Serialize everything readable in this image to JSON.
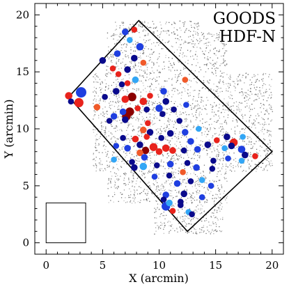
{
  "chart_data": {
    "type": "scatter",
    "labels": [
      "GOODS",
      "HDF-N"
    ],
    "xlabel": "X (arcmin)",
    "ylabel": "Y (arcmin)",
    "xlim": [
      -1,
      21
    ],
    "ylim": [
      -1,
      21
    ],
    "x_ticks": [
      "0",
      "5",
      "10",
      "15",
      "20"
    ],
    "y_ticks": [
      "0",
      "5",
      "10",
      "15",
      "20"
    ],
    "grid": false,
    "field_outline": [
      [
        2.0,
        12.8
      ],
      [
        8.2,
        19.5
      ],
      [
        20.0,
        8.0
      ],
      [
        12.5,
        1.0
      ]
    ],
    "reference_box": [
      [
        0.0,
        0.0
      ],
      [
        3.5,
        3.5
      ]
    ],
    "point_colors": {
      "dark_red": "#8b0000",
      "red": "#e8231c",
      "orange_red": "#f05a2a",
      "dark_blue": "#0a0a8c",
      "blue": "#1f3fe0",
      "light_blue": "#33a6f5"
    },
    "points": [
      {
        "x": 2.0,
        "y": 12.9,
        "size": 0.5,
        "color": "red"
      },
      {
        "x": 2.2,
        "y": 12.4,
        "size": 0.3,
        "color": "dark_blue"
      },
      {
        "x": 2.9,
        "y": 12.3,
        "size": 0.8,
        "color": "red"
      },
      {
        "x": 3.1,
        "y": 13.2,
        "size": 1.0,
        "color": "blue"
      },
      {
        "x": 4.5,
        "y": 11.9,
        "size": 0.4,
        "color": "orange_red"
      },
      {
        "x": 5.2,
        "y": 12.8,
        "size": 0.3,
        "color": "dark_blue"
      },
      {
        "x": 5.0,
        "y": 16.0,
        "size": 0.4,
        "color": "dark_blue"
      },
      {
        "x": 5.9,
        "y": 15.3,
        "size": 0.3,
        "color": "red"
      },
      {
        "x": 6.3,
        "y": 16.6,
        "size": 0.4,
        "color": "blue"
      },
      {
        "x": 7.0,
        "y": 18.5,
        "size": 0.4,
        "color": "blue"
      },
      {
        "x": 7.8,
        "y": 18.7,
        "size": 0.3,
        "color": "red"
      },
      {
        "x": 7.4,
        "y": 17.8,
        "size": 0.3,
        "color": "light_blue"
      },
      {
        "x": 8.3,
        "y": 17.2,
        "size": 0.5,
        "color": "blue"
      },
      {
        "x": 7.8,
        "y": 16.2,
        "size": 0.4,
        "color": "dark_blue"
      },
      {
        "x": 8.6,
        "y": 15.8,
        "size": 0.3,
        "color": "orange_red"
      },
      {
        "x": 7.2,
        "y": 15.2,
        "size": 0.4,
        "color": "dark_blue"
      },
      {
        "x": 6.4,
        "y": 14.8,
        "size": 0.3,
        "color": "red"
      },
      {
        "x": 6.7,
        "y": 13.9,
        "size": 0.3,
        "color": "dark_blue"
      },
      {
        "x": 7.2,
        "y": 14.0,
        "size": 0.3,
        "color": "red"
      },
      {
        "x": 7.9,
        "y": 14.3,
        "size": 0.4,
        "color": "light_blue"
      },
      {
        "x": 6.2,
        "y": 13.3,
        "size": 0.4,
        "color": "dark_blue"
      },
      {
        "x": 7.0,
        "y": 12.6,
        "size": 0.5,
        "color": "red"
      },
      {
        "x": 7.6,
        "y": 12.8,
        "size": 0.7,
        "color": "dark_red"
      },
      {
        "x": 8.6,
        "y": 12.4,
        "size": 0.5,
        "color": "red"
      },
      {
        "x": 9.2,
        "y": 12.9,
        "size": 0.3,
        "color": "red"
      },
      {
        "x": 8.9,
        "y": 11.7,
        "size": 0.3,
        "color": "dark_blue"
      },
      {
        "x": 6.8,
        "y": 11.5,
        "size": 0.4,
        "color": "blue"
      },
      {
        "x": 7.4,
        "y": 11.5,
        "size": 0.7,
        "color": "dark_red"
      },
      {
        "x": 7.1,
        "y": 11.1,
        "size": 0.7,
        "color": "dark_red"
      },
      {
        "x": 8.1,
        "y": 11.8,
        "size": 0.3,
        "color": "red"
      },
      {
        "x": 7.0,
        "y": 10.8,
        "size": 0.4,
        "color": "dark_blue"
      },
      {
        "x": 6.0,
        "y": 11.1,
        "size": 0.4,
        "color": "blue"
      },
      {
        "x": 5.6,
        "y": 10.7,
        "size": 0.3,
        "color": "dark_blue"
      },
      {
        "x": 10.4,
        "y": 13.3,
        "size": 0.4,
        "color": "blue"
      },
      {
        "x": 10.6,
        "y": 12.4,
        "size": 0.4,
        "color": "dark_blue"
      },
      {
        "x": 10.0,
        "y": 11.8,
        "size": 0.5,
        "color": "blue"
      },
      {
        "x": 10.3,
        "y": 11.3,
        "size": 0.3,
        "color": "dark_blue"
      },
      {
        "x": 11.3,
        "y": 11.7,
        "size": 0.3,
        "color": "dark_blue"
      },
      {
        "x": 12.4,
        "y": 12.1,
        "size": 0.3,
        "color": "blue"
      },
      {
        "x": 11.8,
        "y": 10.7,
        "size": 0.3,
        "color": "dark_blue"
      },
      {
        "x": 12.3,
        "y": 14.3,
        "size": 0.3,
        "color": "orange_red"
      },
      {
        "x": 9.0,
        "y": 10.5,
        "size": 0.3,
        "color": "red"
      },
      {
        "x": 8.6,
        "y": 9.9,
        "size": 0.4,
        "color": "orange_red"
      },
      {
        "x": 9.2,
        "y": 9.7,
        "size": 0.4,
        "color": "dark_blue"
      },
      {
        "x": 8.9,
        "y": 9.3,
        "size": 0.3,
        "color": "red"
      },
      {
        "x": 7.9,
        "y": 9.1,
        "size": 0.4,
        "color": "red"
      },
      {
        "x": 8.3,
        "y": 8.6,
        "size": 0.4,
        "color": "dark_blue"
      },
      {
        "x": 6.8,
        "y": 9.2,
        "size": 0.3,
        "color": "dark_blue"
      },
      {
        "x": 6.2,
        "y": 8.5,
        "size": 0.3,
        "color": "blue"
      },
      {
        "x": 7.2,
        "y": 8.3,
        "size": 0.4,
        "color": "blue"
      },
      {
        "x": 8.8,
        "y": 8.1,
        "size": 0.5,
        "color": "dark_red"
      },
      {
        "x": 9.5,
        "y": 8.4,
        "size": 0.6,
        "color": "red"
      },
      {
        "x": 10.0,
        "y": 8.0,
        "size": 0.4,
        "color": "red"
      },
      {
        "x": 10.6,
        "y": 8.3,
        "size": 0.5,
        "color": "red"
      },
      {
        "x": 11.2,
        "y": 8.1,
        "size": 0.4,
        "color": "red"
      },
      {
        "x": 8.3,
        "y": 7.9,
        "size": 0.4,
        "color": "orange_red"
      },
      {
        "x": 10.2,
        "y": 9.2,
        "size": 0.3,
        "color": "dark_blue"
      },
      {
        "x": 11.0,
        "y": 9.6,
        "size": 0.4,
        "color": "dark_blue"
      },
      {
        "x": 12.3,
        "y": 9.7,
        "size": 0.4,
        "color": "blue"
      },
      {
        "x": 13.5,
        "y": 10.0,
        "size": 0.3,
        "color": "light_blue"
      },
      {
        "x": 12.8,
        "y": 8.9,
        "size": 0.4,
        "color": "blue"
      },
      {
        "x": 12.2,
        "y": 8.1,
        "size": 0.3,
        "color": "dark_blue"
      },
      {
        "x": 13.4,
        "y": 8.2,
        "size": 0.4,
        "color": "blue"
      },
      {
        "x": 14.3,
        "y": 8.6,
        "size": 0.4,
        "color": "dark_blue"
      },
      {
        "x": 15.1,
        "y": 9.0,
        "size": 0.3,
        "color": "red"
      },
      {
        "x": 15.8,
        "y": 8.3,
        "size": 0.3,
        "color": "light_blue"
      },
      {
        "x": 16.0,
        "y": 9.3,
        "size": 0.4,
        "color": "dark_blue"
      },
      {
        "x": 16.4,
        "y": 8.5,
        "size": 0.4,
        "color": "dark_blue"
      },
      {
        "x": 16.6,
        "y": 8.8,
        "size": 0.6,
        "color": "red"
      },
      {
        "x": 17.3,
        "y": 8.2,
        "size": 0.5,
        "color": "blue"
      },
      {
        "x": 17.6,
        "y": 7.7,
        "size": 0.4,
        "color": "dark_blue"
      },
      {
        "x": 17.3,
        "y": 7.2,
        "size": 0.3,
        "color": "light_blue"
      },
      {
        "x": 18.5,
        "y": 7.6,
        "size": 0.3,
        "color": "red"
      },
      {
        "x": 17.4,
        "y": 9.3,
        "size": 0.3,
        "color": "light_blue"
      },
      {
        "x": 6.0,
        "y": 7.3,
        "size": 0.3,
        "color": "light_blue"
      },
      {
        "x": 7.6,
        "y": 7.1,
        "size": 0.3,
        "color": "dark_blue"
      },
      {
        "x": 8.7,
        "y": 7.5,
        "size": 0.4,
        "color": "blue"
      },
      {
        "x": 7.8,
        "y": 6.6,
        "size": 0.4,
        "color": "dark_blue"
      },
      {
        "x": 8.6,
        "y": 6.7,
        "size": 0.5,
        "color": "light_blue"
      },
      {
        "x": 9.8,
        "y": 6.8,
        "size": 0.3,
        "color": "dark_blue"
      },
      {
        "x": 11.0,
        "y": 6.9,
        "size": 0.4,
        "color": "blue"
      },
      {
        "x": 12.5,
        "y": 7.0,
        "size": 0.3,
        "color": "dark_blue"
      },
      {
        "x": 13.3,
        "y": 6.6,
        "size": 0.4,
        "color": "blue"
      },
      {
        "x": 14.7,
        "y": 6.5,
        "size": 0.3,
        "color": "dark_blue"
      },
      {
        "x": 12.1,
        "y": 6.2,
        "size": 0.3,
        "color": "orange_red"
      },
      {
        "x": 9.6,
        "y": 5.8,
        "size": 0.3,
        "color": "blue"
      },
      {
        "x": 10.9,
        "y": 5.9,
        "size": 0.3,
        "color": "dark_blue"
      },
      {
        "x": 11.6,
        "y": 5.2,
        "size": 0.4,
        "color": "blue"
      },
      {
        "x": 12.8,
        "y": 5.4,
        "size": 0.3,
        "color": "dark_blue"
      },
      {
        "x": 13.8,
        "y": 5.5,
        "size": 0.3,
        "color": "light_blue"
      },
      {
        "x": 14.6,
        "y": 5.0,
        "size": 0.3,
        "color": "blue"
      },
      {
        "x": 10.6,
        "y": 4.2,
        "size": 0.4,
        "color": "blue"
      },
      {
        "x": 10.4,
        "y": 3.8,
        "size": 0.3,
        "color": "dark_blue"
      },
      {
        "x": 12.2,
        "y": 4.3,
        "size": 0.4,
        "color": "dark_blue"
      },
      {
        "x": 13.8,
        "y": 4.0,
        "size": 0.3,
        "color": "blue"
      },
      {
        "x": 10.9,
        "y": 3.5,
        "size": 0.4,
        "color": "light_blue"
      },
      {
        "x": 11.9,
        "y": 3.3,
        "size": 0.3,
        "color": "dark_blue"
      },
      {
        "x": 11.2,
        "y": 2.8,
        "size": 0.3,
        "color": "red"
      },
      {
        "x": 10.6,
        "y": 3.2,
        "size": 0.7,
        "color": "blue"
      },
      {
        "x": 12.6,
        "y": 2.7,
        "size": 0.3,
        "color": "light_blue"
      },
      {
        "x": 12.9,
        "y": 2.5,
        "size": 0.3,
        "color": "dark_blue"
      },
      {
        "x": 11.9,
        "y": 3.6,
        "size": 0.3,
        "color": "dark_blue"
      },
      {
        "x": 14.8,
        "y": 7.2,
        "size": 0.3,
        "color": "dark_blue"
      },
      {
        "x": 16.1,
        "y": 7.4,
        "size": 0.3,
        "color": "blue"
      }
    ]
  }
}
